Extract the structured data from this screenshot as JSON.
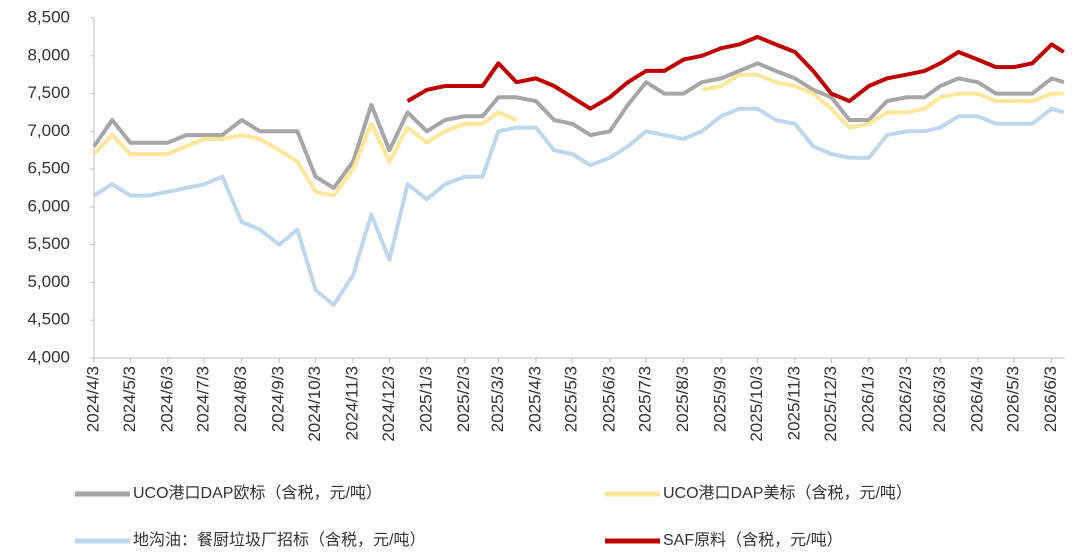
{
  "chart_data": {
    "type": "line",
    "x": [
      "2024/4/3",
      "2024/4/18",
      "2024/5/3",
      "2024/5/18",
      "2024/6/3",
      "2024/6/18",
      "2024/7/3",
      "2024/7/18",
      "2024/8/3",
      "2024/8/18",
      "2024/9/3",
      "2024/9/18",
      "2024/10/3",
      "2024/10/18",
      "2024/11/3",
      "2024/11/18",
      "2024/12/3",
      "2024/12/18",
      "2025/1/3",
      "2025/1/18",
      "2025/2/3",
      "2025/2/18",
      "2025/3/3",
      "2025/3/18",
      "2025/4/3",
      "2025/4/18",
      "2025/5/3",
      "2025/5/18",
      "2025/6/3",
      "2025/6/18",
      "2025/7/3",
      "2025/7/18",
      "2025/8/3",
      "2025/8/18",
      "2025/9/3",
      "2025/9/18",
      "2025/10/3",
      "2025/10/18",
      "2025/11/3",
      "2025/11/18",
      "2025/12/3",
      "2025/12/18",
      "2026/1/3",
      "2026/1/18",
      "2026/2/3",
      "2026/2/18",
      "2026/3/3",
      "2026/3/18",
      "2026/4/3",
      "2026/4/18",
      "2026/5/3",
      "2026/5/18",
      "2026/6/3",
      "2026/6/13"
    ],
    "series": [
      {
        "name": "UCO港口DAP欧标（含税，元/吨）",
        "color": "#a6a6a6",
        "values": [
          6800,
          7150,
          6850,
          6850,
          6850,
          6950,
          6950,
          6950,
          7150,
          7000,
          7000,
          7000,
          6400,
          6250,
          6600,
          7350,
          6750,
          7250,
          7000,
          7150,
          7200,
          7200,
          7450,
          7450,
          7400,
          7150,
          7100,
          6950,
          7000,
          7350,
          7650,
          7500,
          7500,
          7650,
          7700,
          7800,
          7900,
          7800,
          7700,
          7550,
          7450,
          7150,
          7150,
          7400,
          7450,
          7450,
          7600,
          7700,
          7650,
          7500,
          7500,
          7500,
          7700,
          7650
        ]
      },
      {
        "name": "UCO港口DAP美标（含税，元/吨）",
        "color": "#ffe699",
        "values": [
          6700,
          6950,
          6700,
          6700,
          6700,
          6800,
          6900,
          6900,
          6950,
          6900,
          6750,
          6600,
          6200,
          6150,
          6500,
          7100,
          6600,
          7050,
          6850,
          7000,
          7100,
          7100,
          7250,
          7150,
          null,
          null,
          null,
          null,
          null,
          null,
          null,
          null,
          null,
          7550,
          7600,
          7750,
          7750,
          7650,
          7600,
          7500,
          7300,
          7050,
          7100,
          7250,
          7250,
          7300,
          7450,
          7500,
          7500,
          7400,
          7400,
          7400,
          7500,
          7500
        ]
      },
      {
        "name": "地沟油：餐厨垃圾厂招标（含税，元/吨）",
        "color": "#bdd7ee",
        "values": [
          6150,
          6300,
          6150,
          6150,
          6200,
          6250,
          6300,
          6400,
          5800,
          5700,
          5500,
          5700,
          4900,
          4700,
          5100,
          5900,
          5300,
          6300,
          6100,
          6300,
          6400,
          6400,
          7000,
          7050,
          7050,
          6750,
          6700,
          6550,
          6650,
          6800,
          7000,
          6950,
          6900,
          7000,
          7200,
          7300,
          7300,
          7150,
          7100,
          6800,
          6700,
          6650,
          6650,
          6950,
          7000,
          7000,
          7050,
          7200,
          7200,
          7100,
          7100,
          7100,
          7300,
          7250
        ]
      },
      {
        "name": "SAF原料（含税，元/吨）",
        "color": "#c00000",
        "values": [
          null,
          null,
          null,
          null,
          null,
          null,
          null,
          null,
          null,
          null,
          null,
          null,
          null,
          null,
          null,
          null,
          null,
          7400,
          7550,
          7600,
          7600,
          7600,
          7900,
          7650,
          7700,
          7600,
          7450,
          7300,
          7450,
          7650,
          7800,
          7800,
          7950,
          8000,
          8100,
          8150,
          8250,
          8150,
          8050,
          7800,
          7500,
          7400,
          7600,
          7700,
          7750,
          7800,
          7900,
          8050,
          7950,
          7850,
          7850,
          7900,
          8150,
          8050
        ]
      }
    ],
    "xlim": [
      "2024/4/3",
      "2026/6/14"
    ],
    "xticks": [
      "2024/4/3",
      "2024/5/3",
      "2024/6/3",
      "2024/7/3",
      "2024/8/3",
      "2024/9/3",
      "2024/10/3",
      "2024/11/3",
      "2024/12/3",
      "2025/1/3",
      "2025/2/3",
      "2025/3/3",
      "2025/4/3",
      "2025/5/3",
      "2025/6/3",
      "2025/7/3",
      "2025/8/3",
      "2025/9/3",
      "2025/10/3",
      "2025/11/3",
      "2025/12/3",
      "2026/1/3",
      "2026/2/3",
      "2026/3/3",
      "2026/4/3",
      "2026/5/3",
      "2026/6/3"
    ],
    "ylim": [
      4000,
      8500
    ],
    "yticks": [
      {
        "value": 4000,
        "label": "4,000"
      },
      {
        "value": 4500,
        "label": "4,500"
      },
      {
        "value": 5000,
        "label": "5,000"
      },
      {
        "value": 5500,
        "label": "5,500"
      },
      {
        "value": 6000,
        "label": "6,000"
      },
      {
        "value": 6500,
        "label": "6,500"
      },
      {
        "value": 7000,
        "label": "7,000"
      },
      {
        "value": 7500,
        "label": "7,500"
      },
      {
        "value": 8000,
        "label": "8,000"
      },
      {
        "value": 8500,
        "label": "8,500"
      }
    ],
    "grid": false
  }
}
